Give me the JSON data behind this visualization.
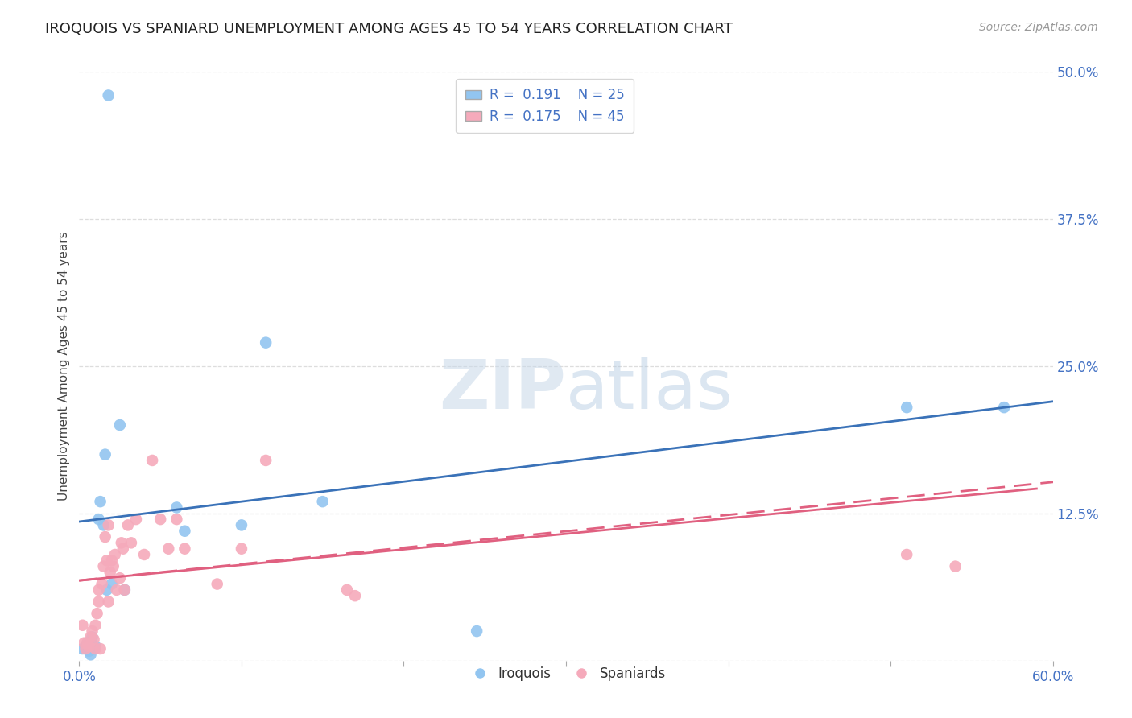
{
  "title": "IROQUOIS VS SPANIARD UNEMPLOYMENT AMONG AGES 45 TO 54 YEARS CORRELATION CHART",
  "source": "Source: ZipAtlas.com",
  "ylabel": "Unemployment Among Ages 45 to 54 years",
  "xlim": [
    0.0,
    0.6
  ],
  "ylim": [
    0.0,
    0.5
  ],
  "xticks": [
    0.0,
    0.1,
    0.2,
    0.3,
    0.4,
    0.5,
    0.6
  ],
  "yticks": [
    0.0,
    0.125,
    0.25,
    0.375,
    0.5
  ],
  "xticklabels": [
    "0.0%",
    "",
    "",
    "",
    "",
    "",
    "60.0%"
  ],
  "yticklabels": [
    "",
    "12.5%",
    "25.0%",
    "37.5%",
    "50.0%"
  ],
  "iroquois_color": "#92C5F0",
  "spaniard_color": "#F5AABB",
  "iroquois_line_color": "#3A72B8",
  "spaniard_line_color": "#E06080",
  "iroquois_r": 0.191,
  "iroquois_n": 25,
  "spaniard_r": 0.175,
  "spaniard_n": 45,
  "iroquois_line_start_y": 0.118,
  "iroquois_line_end_y": 0.22,
  "spaniard_line_start_y": 0.068,
  "spaniard_line_end_y": 0.148,
  "iroquois_x": [
    0.002,
    0.004,
    0.005,
    0.006,
    0.007,
    0.008,
    0.009,
    0.01,
    0.012,
    0.013,
    0.015,
    0.016,
    0.017,
    0.018,
    0.02,
    0.025,
    0.028,
    0.06,
    0.065,
    0.1,
    0.115,
    0.15,
    0.245,
    0.51,
    0.57
  ],
  "iroquois_y": [
    0.01,
    0.012,
    0.015,
    0.008,
    0.005,
    0.02,
    0.01,
    0.012,
    0.12,
    0.135,
    0.115,
    0.175,
    0.06,
    0.48,
    0.065,
    0.2,
    0.06,
    0.13,
    0.11,
    0.115,
    0.27,
    0.135,
    0.025,
    0.215,
    0.215
  ],
  "spaniard_x": [
    0.002,
    0.003,
    0.004,
    0.005,
    0.006,
    0.007,
    0.008,
    0.009,
    0.01,
    0.01,
    0.011,
    0.012,
    0.012,
    0.013,
    0.014,
    0.015,
    0.016,
    0.017,
    0.018,
    0.018,
    0.019,
    0.02,
    0.021,
    0.022,
    0.023,
    0.025,
    0.026,
    0.027,
    0.028,
    0.03,
    0.032,
    0.035,
    0.04,
    0.045,
    0.05,
    0.055,
    0.06,
    0.065,
    0.085,
    0.1,
    0.115,
    0.165,
    0.17,
    0.51,
    0.54
  ],
  "spaniard_y": [
    0.03,
    0.015,
    0.01,
    0.015,
    0.012,
    0.02,
    0.025,
    0.018,
    0.03,
    0.01,
    0.04,
    0.05,
    0.06,
    0.01,
    0.065,
    0.08,
    0.105,
    0.085,
    0.05,
    0.115,
    0.075,
    0.085,
    0.08,
    0.09,
    0.06,
    0.07,
    0.1,
    0.095,
    0.06,
    0.115,
    0.1,
    0.12,
    0.09,
    0.17,
    0.12,
    0.095,
    0.12,
    0.095,
    0.065,
    0.095,
    0.17,
    0.06,
    0.055,
    0.09,
    0.08
  ],
  "background_color": "#FFFFFF",
  "grid_color": "#DDDDDD"
}
